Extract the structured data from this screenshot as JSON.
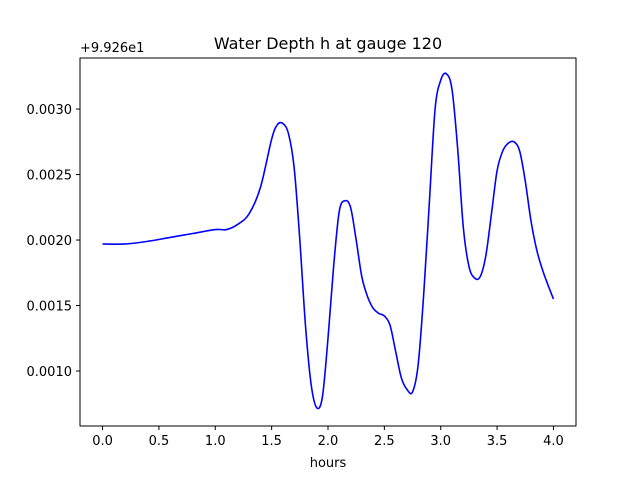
{
  "chart_data": {
    "type": "line",
    "title": "Water Depth h at gauge 120",
    "xlabel": "hours",
    "ylabel": "",
    "y_offset_label": "+9.926e1",
    "xlim": [
      -0.2,
      4.2
    ],
    "ylim": [
      0.00058,
      0.00339
    ],
    "x_ticks": [
      0.0,
      0.5,
      1.0,
      1.5,
      2.0,
      2.5,
      3.0,
      3.5,
      4.0
    ],
    "x_tick_labels": [
      "0.0",
      "0.5",
      "1.0",
      "1.5",
      "2.0",
      "2.5",
      "3.0",
      "3.5",
      "4.0"
    ],
    "y_ticks": [
      0.001,
      0.0015,
      0.002,
      0.0025,
      0.003
    ],
    "y_tick_labels": [
      "0.0010",
      "0.0015",
      "0.0020",
      "0.0025",
      "0.0030"
    ],
    "grid": false,
    "line_color": "#0000ff",
    "series": [
      {
        "x": [
          0.0,
          0.2,
          0.4,
          0.6,
          0.8,
          1.0,
          1.1,
          1.2,
          1.3,
          1.4,
          1.5,
          1.55,
          1.6,
          1.65,
          1.7,
          1.75,
          1.8,
          1.85,
          1.9,
          1.95,
          2.0,
          2.05,
          2.1,
          2.15,
          2.2,
          2.25,
          2.3,
          2.35,
          2.4,
          2.45,
          2.5,
          2.55,
          2.6,
          2.65,
          2.7,
          2.75,
          2.8,
          2.85,
          2.9,
          2.95,
          3.0,
          3.05,
          3.1,
          3.15,
          3.2,
          3.25,
          3.3,
          3.35,
          3.4,
          3.45,
          3.5,
          3.55,
          3.6,
          3.65,
          3.7,
          3.75,
          3.8,
          3.85,
          3.9,
          3.95,
          4.0
        ],
        "y": [
          0.00197,
          0.00197,
          0.00199,
          0.00202,
          0.00205,
          0.00208,
          0.00208,
          0.00212,
          0.0022,
          0.0024,
          0.00277,
          0.00288,
          0.00289,
          0.00281,
          0.00255,
          0.002,
          0.00135,
          0.0009,
          0.00072,
          0.0008,
          0.00125,
          0.0018,
          0.00222,
          0.0023,
          0.00225,
          0.002,
          0.00172,
          0.00157,
          0.00148,
          0.00144,
          0.00142,
          0.00135,
          0.00115,
          0.00095,
          0.00086,
          0.00084,
          0.00105,
          0.0016,
          0.0023,
          0.003,
          0.00322,
          0.00327,
          0.00315,
          0.0027,
          0.0021,
          0.0018,
          0.00171,
          0.00172,
          0.00188,
          0.0022,
          0.00253,
          0.00268,
          0.00274,
          0.00275,
          0.00268,
          0.00245,
          0.00215,
          0.00193,
          0.00178,
          0.00166,
          0.00155
        ]
      }
    ]
  }
}
